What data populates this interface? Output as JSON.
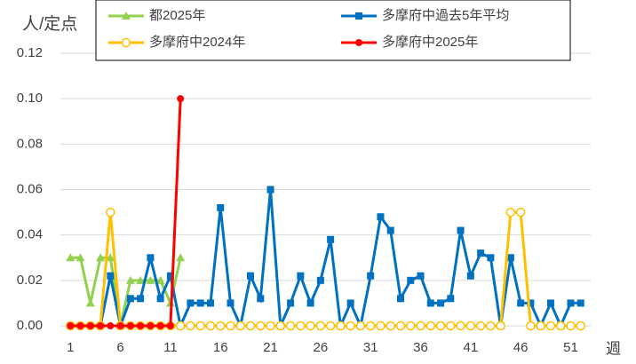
{
  "chart_data": {
    "type": "line",
    "y_label": "人/定点",
    "x_label": "週",
    "x": [
      1,
      2,
      3,
      4,
      5,
      6,
      7,
      8,
      9,
      10,
      11,
      12,
      13,
      14,
      15,
      16,
      17,
      18,
      19,
      20,
      21,
      22,
      23,
      24,
      25,
      26,
      27,
      28,
      29,
      30,
      31,
      32,
      33,
      34,
      35,
      36,
      37,
      38,
      39,
      40,
      41,
      42,
      43,
      44,
      45,
      46,
      47,
      48,
      49,
      50,
      51,
      52
    ],
    "xlim": [
      0,
      53
    ],
    "xticks": [
      1,
      6,
      11,
      16,
      21,
      26,
      31,
      36,
      41,
      46,
      51
    ],
    "ylim": [
      0,
      0.12
    ],
    "yticks": [
      {
        "value": 0,
        "label": "0.00"
      },
      {
        "value": 0.02,
        "label": "0.02"
      },
      {
        "value": 0.04,
        "label": "0.04"
      },
      {
        "value": 0.06,
        "label": "0.06"
      },
      {
        "value": 0.08,
        "label": "0.08"
      },
      {
        "value": 0.1,
        "label": "0.10"
      },
      {
        "value": 0.12,
        "label": "0.12"
      }
    ],
    "grid": true,
    "series": [
      {
        "name": "都2025年",
        "color": "#92d050",
        "marker": "triangle",
        "values": [
          0.03,
          0.03,
          0.01,
          0.03,
          0.03,
          0,
          0.02,
          0.02,
          0.02,
          0.02,
          0.01,
          0.03,
          null,
          null,
          null,
          null,
          null,
          null,
          null,
          null,
          null,
          null,
          null,
          null,
          null,
          null,
          null,
          null,
          null,
          null,
          null,
          null,
          null,
          null,
          null,
          null,
          null,
          null,
          null,
          null,
          null,
          null,
          null,
          null,
          null,
          null,
          null,
          null,
          null,
          null,
          null,
          null
        ]
      },
      {
        "name": "多摩府中過去5年平均",
        "color": "#0070c0",
        "marker": "square",
        "values": [
          0,
          0,
          0,
          0,
          0.022,
          0,
          0.012,
          0.012,
          0.03,
          0.012,
          0.022,
          0,
          0.01,
          0.01,
          0.01,
          0.052,
          0.01,
          0,
          0.022,
          0.012,
          0.06,
          0,
          0.01,
          0.022,
          0.01,
          0.02,
          0.038,
          0,
          0.01,
          0,
          0.022,
          0.048,
          0.042,
          0.012,
          0.02,
          0.022,
          0.01,
          0.01,
          0.012,
          0.042,
          0.022,
          0.032,
          0.03,
          0,
          0.03,
          0.01,
          0.01,
          0,
          0.01,
          0,
          0.01,
          0.01
        ]
      },
      {
        "name": "多摩府中2024年",
        "color": "#ffc000",
        "marker": "open-circle",
        "values": [
          0,
          0,
          0,
          0,
          0.05,
          0,
          0,
          0,
          0,
          0,
          0,
          0,
          0,
          0,
          0,
          0,
          0,
          0,
          0,
          0,
          0,
          0,
          0,
          0,
          0,
          0,
          0,
          0,
          0,
          0,
          0,
          0,
          0,
          0,
          0,
          0,
          0,
          0,
          0,
          0,
          0,
          0,
          0,
          0,
          0.05,
          0.05,
          0,
          0,
          0,
          0,
          0,
          0
        ]
      },
      {
        "name": "多摩府中2025年",
        "color": "#ff0000",
        "marker": "circle",
        "values": [
          0,
          0,
          0,
          0,
          0,
          0,
          0,
          0,
          0,
          0,
          0,
          0.1,
          null,
          null,
          null,
          null,
          null,
          null,
          null,
          null,
          null,
          null,
          null,
          null,
          null,
          null,
          null,
          null,
          null,
          null,
          null,
          null,
          null,
          null,
          null,
          null,
          null,
          null,
          null,
          null,
          null,
          null,
          null,
          null,
          null,
          null,
          null,
          null,
          null,
          null,
          null,
          null
        ]
      }
    ]
  }
}
